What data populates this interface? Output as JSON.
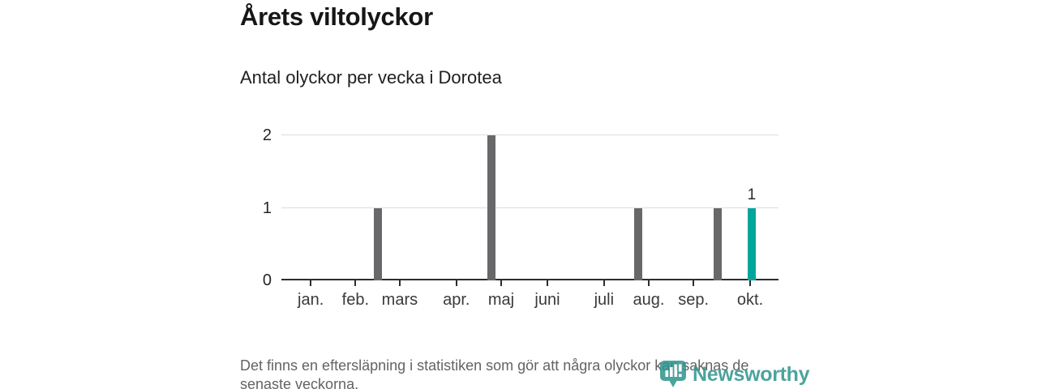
{
  "header": {
    "title": "Årets viltolyckor",
    "subtitle": "Antal olyckor per vecka i Dorotea"
  },
  "chart_data": {
    "type": "bar",
    "title": "Årets viltolyckor",
    "subtitle": "Antal olyckor per vecka i Dorotea",
    "xlabel": "",
    "ylabel": "",
    "x_unit": "vecka",
    "ylim": [
      0,
      2
    ],
    "grid": "horizontal",
    "yticks": [
      {
        "value": 0,
        "label": "0"
      },
      {
        "value": 1,
        "label": "1"
      },
      {
        "value": 2,
        "label": "2"
      }
    ],
    "x_ticks": [
      {
        "label": "jan.",
        "x_pct": 5.9
      },
      {
        "label": "feb.",
        "x_pct": 14.9
      },
      {
        "label": "mars",
        "x_pct": 23.8
      },
      {
        "label": "apr.",
        "x_pct": 35.2
      },
      {
        "label": "maj",
        "x_pct": 44.2
      },
      {
        "label": "juni",
        "x_pct": 53.5
      },
      {
        "label": "juli",
        "x_pct": 64.9
      },
      {
        "label": "aug.",
        "x_pct": 73.9
      },
      {
        "label": "sep.",
        "x_pct": 82.9
      },
      {
        "label": "okt.",
        "x_pct": 94.3
      }
    ],
    "bars": [
      {
        "approx_period": "slutet av februari",
        "value": 1,
        "x_pct": 19.4,
        "highlight": false
      },
      {
        "approx_period": "början av maj",
        "value": 2,
        "x_pct": 42.3,
        "highlight": false
      },
      {
        "approx_period": "slutet av juli",
        "value": 1,
        "x_pct": 71.8,
        "highlight": false
      },
      {
        "approx_period": "slutet av september",
        "value": 1,
        "x_pct": 87.7,
        "highlight": false
      },
      {
        "approx_period": "mitten av oktober",
        "value": 1,
        "x_pct": 94.6,
        "highlight": true,
        "data_label": "1"
      }
    ],
    "colors": {
      "bar_default": "#68686b",
      "bar_highlight": "#00a69b",
      "gridline": "#dcdcdc",
      "axis": "#2d2d2d",
      "label": "#3a3a3a"
    }
  },
  "footer": {
    "note": "Det finns en eftersläpning i statistiken som gör att några olyckor kan saknas de senaste veckorna.",
    "note_lines": [
      "Det finns en eftersläpning i statistiken som gör att några olyckor kan saknas de",
      "senaste veckorna."
    ]
  },
  "brand": {
    "name": "Newsworthy",
    "color": "#2d948c"
  }
}
